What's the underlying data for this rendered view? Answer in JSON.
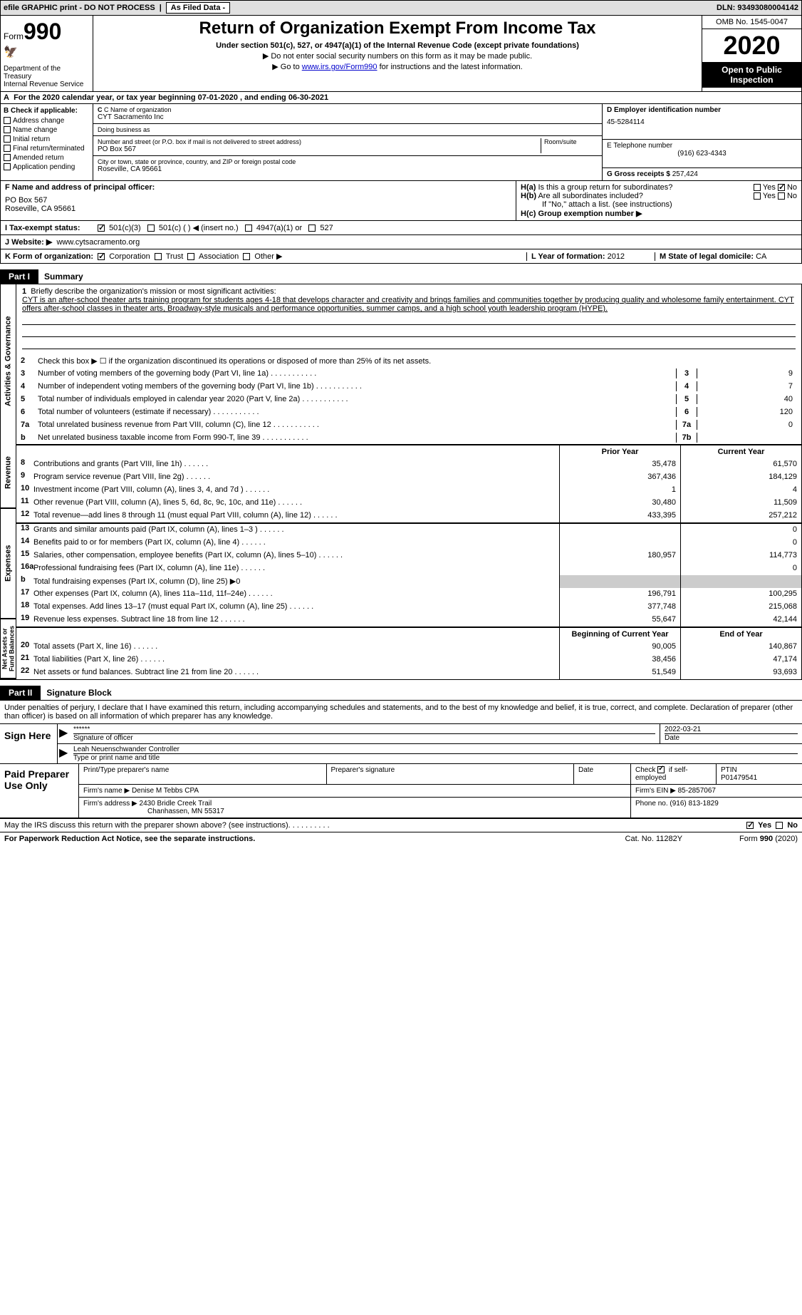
{
  "topbar": {
    "efile": "efile GRAPHIC print - DO NOT PROCESS",
    "asfiled": "As Filed Data -",
    "dln": "DLN: 93493080004142"
  },
  "header": {
    "form_label": "Form",
    "form_number": "990",
    "dept": "Department of the Treasury",
    "irs": "Internal Revenue Service",
    "title": "Return of Organization Exempt From Income Tax",
    "subtitle": "Under section 501(c), 527, or 4947(a)(1) of the Internal Revenue Code (except private foundations)",
    "note1": "▶ Do not enter social security numbers on this form as it may be made public.",
    "note2_pre": "▶ Go to ",
    "note2_link": "www.irs.gov/Form990",
    "note2_post": " for instructions and the latest information.",
    "omb": "OMB No. 1545-0047",
    "year": "2020",
    "open": "Open to Public Inspection"
  },
  "row_a": {
    "prefix": "A",
    "text": "For the 2020 calendar year, or tax year beginning 07-01-2020   , and ending 06-30-2021"
  },
  "box_b": {
    "label": "B Check if applicable:",
    "items": [
      "Address change",
      "Name change",
      "Initial return",
      "Final return/terminated",
      "Amended return",
      "Application pending"
    ]
  },
  "box_c": {
    "name_lbl": "C Name of organization",
    "name": "CYT Sacramento Inc",
    "dba_lbl": "Doing business as",
    "dba": "",
    "addr_lbl": "Number and street (or P.O. box if mail is not delivered to street address)",
    "room_lbl": "Room/suite",
    "addr": "PO Box 567",
    "city_lbl": "City or town, state or province, country, and ZIP or foreign postal code",
    "city": "Roseville, CA  95661"
  },
  "box_d": {
    "lbl": "D Employer identification number",
    "val": "45-5284114"
  },
  "box_e": {
    "lbl": "E Telephone number",
    "val": "(916) 623-4343"
  },
  "box_g": {
    "lbl": "G Gross receipts $",
    "val": "257,424"
  },
  "box_f": {
    "lbl": "F  Name and address of principal officer:",
    "line1": "PO Box 567",
    "line2": "Roseville, CA  95661"
  },
  "box_h": {
    "a": "H(a)  Is this a group return for subordinates?",
    "b": "H(b)  Are all subordinates included?",
    "b_note": "If \"No,\" attach a list. (see instructions)",
    "c": "H(c)  Group exemption number ▶",
    "yes": "Yes",
    "no": "No"
  },
  "row_i": {
    "lbl": "I   Tax-exempt status:",
    "opts": [
      "501(c)(3)",
      "501(c) (  ) ◀ (insert no.)",
      "4947(a)(1) or",
      "527"
    ]
  },
  "row_j": {
    "lbl": "J   Website: ▶",
    "val": "www.cytsacramento.org"
  },
  "row_k": {
    "lbl": "K Form of organization:",
    "opts": [
      "Corporation",
      "Trust",
      "Association",
      "Other ▶"
    ],
    "l_lbl": "L Year of formation:",
    "l_val": "2012",
    "m_lbl": "M State of legal domicile:",
    "m_val": "CA"
  },
  "part1": {
    "tab": "Part I",
    "title": "Summary"
  },
  "mission": {
    "num": "1",
    "lbl": "Briefly describe the organization's mission or most significant activities:",
    "text": "CYT is an after-school theater arts training program for students ages 4-18 that develops character and creativity and brings families and communities together by producing quality and wholesome family entertainment. CYT offers after-school classes in theater arts, Broadway-style musicals and performance opportunities, summer camps, and a high school youth leadership program (HYPE)."
  },
  "gov_lines": {
    "l2": "Check this box ▶ ☐ if the organization discontinued its operations or disposed of more than 25% of its net assets.",
    "l3": {
      "d": "Number of voting members of the governing body (Part VI, line 1a)",
      "v": "9"
    },
    "l4": {
      "d": "Number of independent voting members of the governing body (Part VI, line 1b)",
      "v": "7"
    },
    "l5": {
      "d": "Total number of individuals employed in calendar year 2020 (Part V, line 2a)",
      "v": "40"
    },
    "l6": {
      "d": "Total number of volunteers (estimate if necessary)",
      "v": "120"
    },
    "l7a": {
      "d": "Total unrelated business revenue from Part VIII, column (C), line 12",
      "v": "0"
    },
    "l7b": {
      "d": "Net unrelated business taxable income from Form 990-T, line 39",
      "v": ""
    }
  },
  "col_headers": {
    "prior": "Prior Year",
    "current": "Current Year",
    "begin": "Beginning of Current Year",
    "end": "End of Year"
  },
  "revenue": [
    {
      "n": "8",
      "d": "Contributions and grants (Part VIII, line 1h)",
      "p": "35,478",
      "c": "61,570"
    },
    {
      "n": "9",
      "d": "Program service revenue (Part VIII, line 2g)",
      "p": "367,436",
      "c": "184,129"
    },
    {
      "n": "10",
      "d": "Investment income (Part VIII, column (A), lines 3, 4, and 7d )",
      "p": "1",
      "c": "4"
    },
    {
      "n": "11",
      "d": "Other revenue (Part VIII, column (A), lines 5, 6d, 8c, 9c, 10c, and 11e)",
      "p": "30,480",
      "c": "11,509"
    },
    {
      "n": "12",
      "d": "Total revenue—add lines 8 through 11 (must equal Part VIII, column (A), line 12)",
      "p": "433,395",
      "c": "257,212"
    }
  ],
  "expenses": [
    {
      "n": "13",
      "d": "Grants and similar amounts paid (Part IX, column (A), lines 1–3 )",
      "p": "",
      "c": "0"
    },
    {
      "n": "14",
      "d": "Benefits paid to or for members (Part IX, column (A), line 4)",
      "p": "",
      "c": "0"
    },
    {
      "n": "15",
      "d": "Salaries, other compensation, employee benefits (Part IX, column (A), lines 5–10)",
      "p": "180,957",
      "c": "114,773"
    },
    {
      "n": "16a",
      "d": "Professional fundraising fees (Part IX, column (A), line 11e)",
      "p": "",
      "c": "0"
    },
    {
      "n": "b",
      "d": "Total fundraising expenses (Part IX, column (D), line 25) ▶0",
      "p": null,
      "c": null
    },
    {
      "n": "17",
      "d": "Other expenses (Part IX, column (A), lines 11a–11d, 11f–24e)",
      "p": "196,791",
      "c": "100,295"
    },
    {
      "n": "18",
      "d": "Total expenses. Add lines 13–17 (must equal Part IX, column (A), line 25)",
      "p": "377,748",
      "c": "215,068"
    },
    {
      "n": "19",
      "d": "Revenue less expenses. Subtract line 18 from line 12",
      "p": "55,647",
      "c": "42,144"
    }
  ],
  "netassets": [
    {
      "n": "20",
      "d": "Total assets (Part X, line 16)",
      "p": "90,005",
      "c": "140,867"
    },
    {
      "n": "21",
      "d": "Total liabilities (Part X, line 26)",
      "p": "38,456",
      "c": "47,174"
    },
    {
      "n": "22",
      "d": "Net assets or fund balances. Subtract line 21 from line 20",
      "p": "51,549",
      "c": "93,693"
    }
  ],
  "vert_labels": {
    "gov": "Activities & Governance",
    "rev": "Revenue",
    "exp": "Expenses",
    "net": "Net Assets or Fund Balances"
  },
  "part2": {
    "tab": "Part II",
    "title": "Signature Block",
    "intro": "Under penalties of perjury, I declare that I have examined this return, including accompanying schedules and statements, and to the best of my knowledge and belief, it is true, correct, and complete. Declaration of preparer (other than officer) is based on all information of which preparer has any knowledge."
  },
  "sign": {
    "label": "Sign Here",
    "stars": "******",
    "sig_lbl": "Signature of officer",
    "date": "2022-03-21",
    "date_lbl": "Date",
    "name": "Leah Neuenschwander  Controller",
    "name_lbl": "Type or print name and title"
  },
  "prep": {
    "label": "Paid Preparer Use Only",
    "h1": "Print/Type preparer's name",
    "h2": "Preparer's signature",
    "h3": "Date",
    "h4_pre": "Check",
    "h4_post": "if self-employed",
    "h5": "PTIN",
    "ptin": "P01479541",
    "firm_lbl": "Firm's name    ▶",
    "firm": "Denise M Tebbs CPA",
    "ein_lbl": "Firm's EIN ▶",
    "ein": "85-2857067",
    "addr_lbl": "Firm's address ▶",
    "addr1": "2430 Bridle Creek Trail",
    "addr2": "Chanhassen, MN  55317",
    "phone_lbl": "Phone no.",
    "phone": "(916) 813-1829"
  },
  "footer": {
    "q": "May the IRS discuss this return with the preparer shown above? (see instructions)",
    "yes": "Yes",
    "no": "No",
    "pra": "For Paperwork Reduction Act Notice, see the separate instructions.",
    "cat": "Cat. No. 11282Y",
    "form": "Form 990 (2020)"
  }
}
